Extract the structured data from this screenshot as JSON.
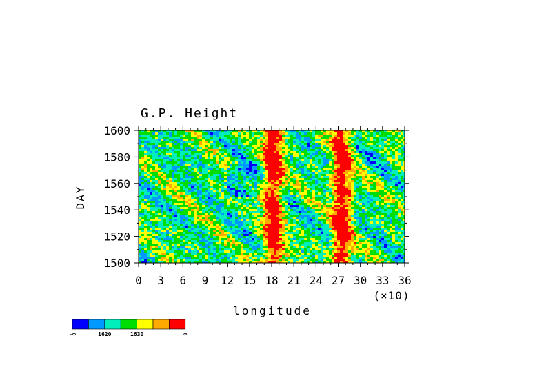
{
  "chart_data": {
    "type": "heatmap",
    "title": "G.P. Height",
    "xlabel": "longitude",
    "xscale_label": "(×10)",
    "ylabel": "DAY",
    "x_ticks": [
      "0",
      "3",
      "6",
      "9",
      "12",
      "15",
      "18",
      "21",
      "24",
      "27",
      "30",
      "33",
      "36"
    ],
    "x_range": [
      0,
      36
    ],
    "y_ticks": [
      "1500",
      "1520",
      "1540",
      "1560",
      "1580",
      "1600"
    ],
    "y_range": [
      1500,
      1600
    ],
    "colorbar": {
      "colors": [
        "#0000ff",
        "#0099ff",
        "#00eebb",
        "#00dd00",
        "#ffff00",
        "#ffaa00",
        "#ff0000"
      ],
      "labels": [
        "-∞",
        "1620",
        "1630",
        "∞"
      ]
    },
    "features": [
      {
        "name": "red band",
        "x_center": 18.2
      },
      {
        "name": "red band",
        "x_center": 27.5
      }
    ]
  }
}
